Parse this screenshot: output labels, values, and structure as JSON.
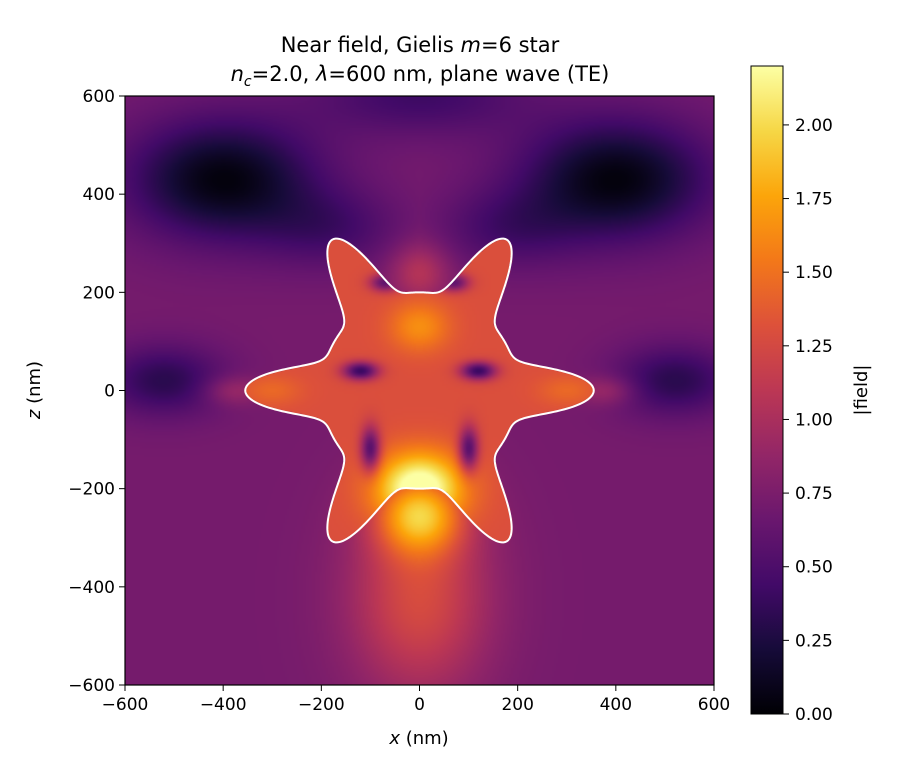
{
  "chart_data": {
    "type": "heatmap",
    "title_line1": {
      "pre": "Near field, Gielis ",
      "var": "m",
      "post": "=6 star"
    },
    "title_line2": {
      "var": "n",
      "sub": "c",
      "mid": "=2.0, ",
      "lambda": "λ",
      "post": "=600 nm, plane wave (TE)"
    },
    "xlabel": {
      "var": "x",
      "unit": " (nm)"
    },
    "ylabel": {
      "var": "z",
      "unit": " (nm)"
    },
    "xlim": [
      -600,
      600
    ],
    "ylim": [
      -600,
      600
    ],
    "x_ticks": [
      -600,
      -400,
      -200,
      0,
      200,
      400,
      600
    ],
    "y_ticks": [
      -600,
      -400,
      -200,
      0,
      200,
      400,
      600
    ],
    "x_tick_labels": [
      "−600",
      "−400",
      "−200",
      "0",
      "200",
      "400",
      "600"
    ],
    "y_tick_labels": [
      "−600",
      "−400",
      "−200",
      "0",
      "200",
      "400",
      "600"
    ],
    "colormap": "inferno",
    "colorbar": {
      "label": "|field|",
      "range": [
        0.0,
        2.2
      ],
      "ticks": [
        0.0,
        0.25,
        0.5,
        0.75,
        1.0,
        1.25,
        1.5,
        1.75,
        2.0
      ],
      "tick_labels": [
        "0.00",
        "0.25",
        "0.50",
        "0.75",
        "1.00",
        "1.25",
        "1.50",
        "1.75",
        "2.00"
      ]
    },
    "particle_shape": {
      "name": "Gielis superformula star",
      "m": 6,
      "outer_radius_nm": 355,
      "inner_radius_nm": 200,
      "outline_color": "#ffffff"
    },
    "field_features": [
      {
        "region": "lower lobe inside star",
        "x_nm": 0,
        "z_nm": -200,
        "value": 2.2
      },
      {
        "region": "upper lobe inside star",
        "x_nm": 0,
        "z_nm": 130,
        "value": 1.5
      },
      {
        "region": "left and right arms",
        "x_nm": 300,
        "z_nm": 0,
        "value": 1.35
      },
      {
        "region": "upper-left dark region",
        "x_nm": -380,
        "z_nm": 420,
        "value": 0.08
      },
      {
        "region": "upper-right dark region",
        "x_nm": 380,
        "z_nm": 420,
        "value": 0.08
      },
      {
        "region": "lower forward-scattering plume",
        "x_nm": 0,
        "z_nm": -500,
        "value": 1.0
      },
      {
        "region": "side shadows",
        "x_nm": 500,
        "z_nm": 0,
        "value": 0.25
      },
      {
        "region": "background",
        "x_nm": 500,
        "z_nm": -500,
        "value": 0.7
      }
    ]
  }
}
